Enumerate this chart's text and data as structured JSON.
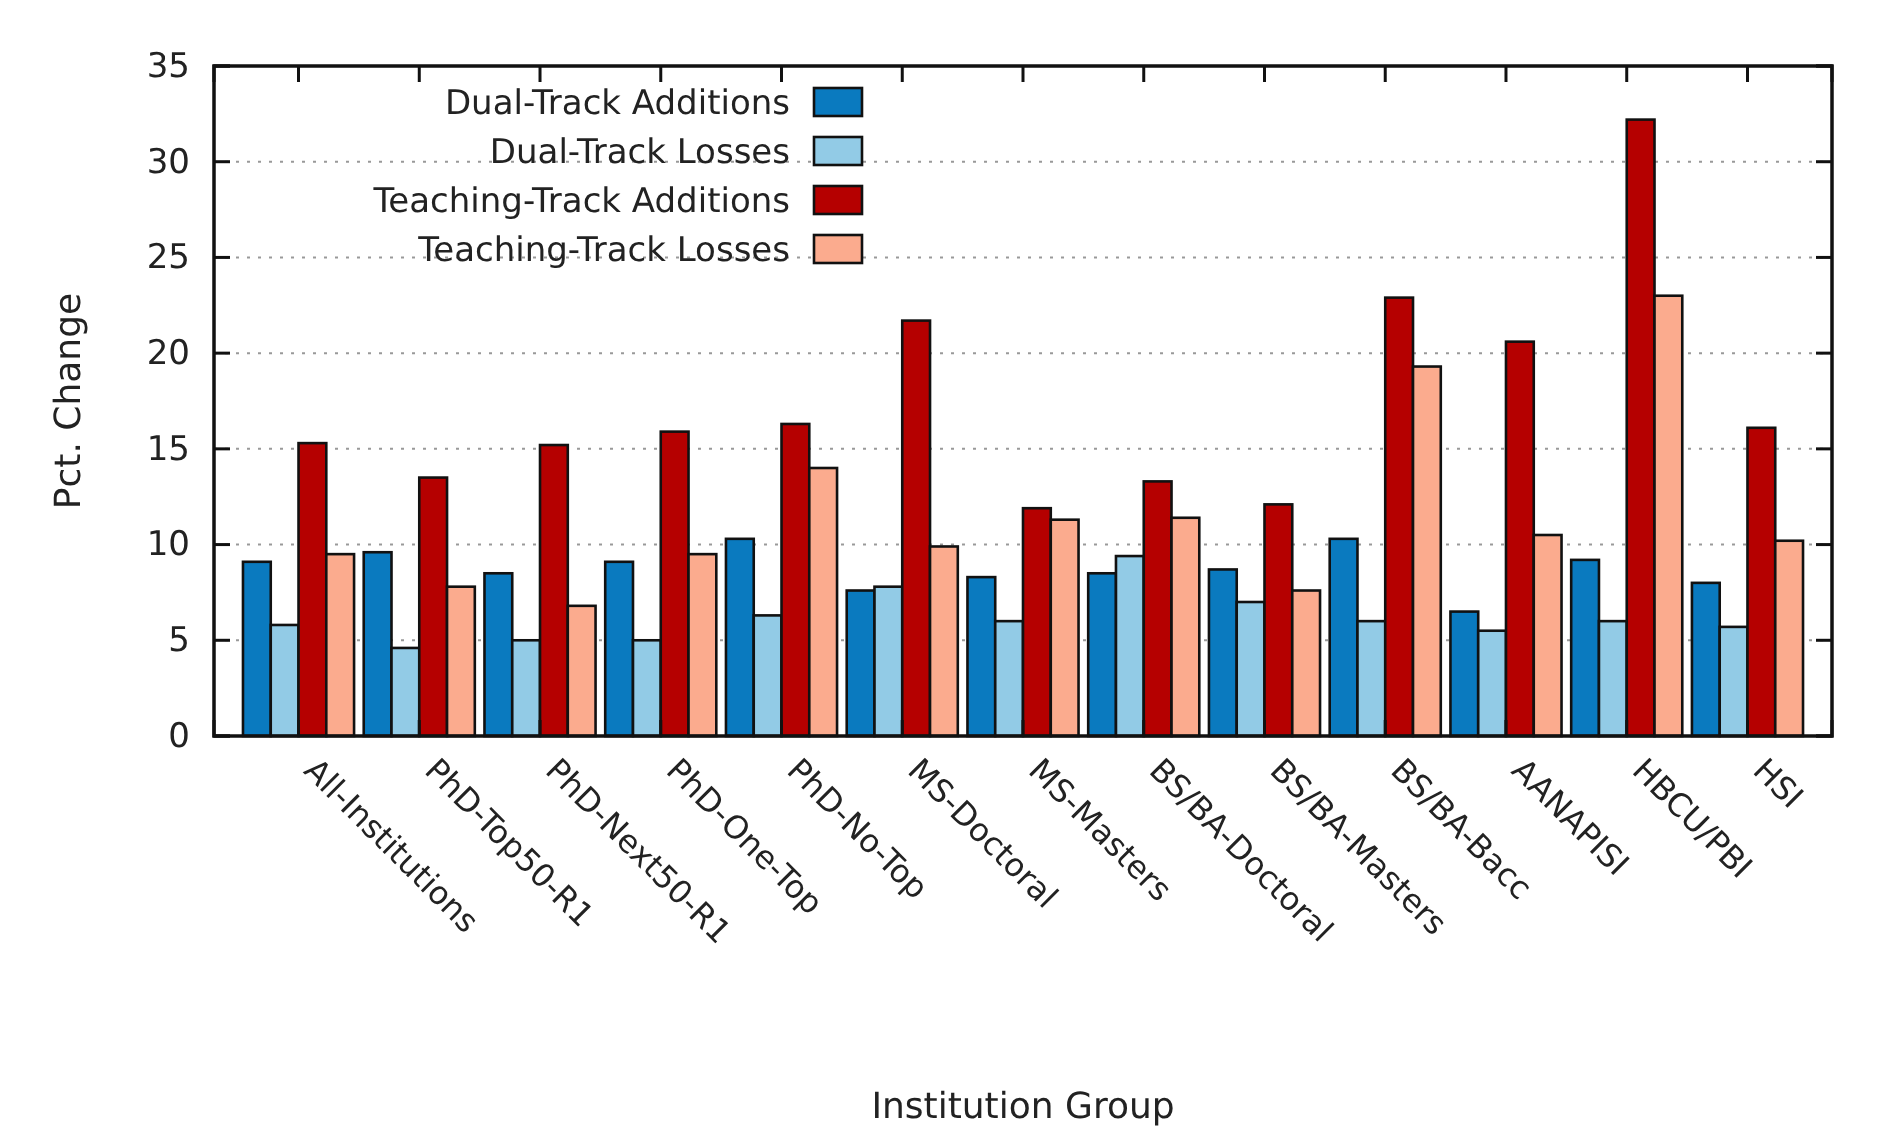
{
  "chart_data": {
    "type": "bar",
    "xlabel": "Institution Group",
    "ylabel": "Pct. Change",
    "categories": [
      "All-Institutions",
      "PhD-Top50-R1",
      "PhD-Next50-R1",
      "PhD-One-Top",
      "PhD-No-Top",
      "MS-Doctoral",
      "MS-Masters",
      "BS/BA-Doctoral",
      "BS/BA-Masters",
      "BS/BA-Bacc",
      "AANAPISI",
      "HBCU/PBI",
      "HSI"
    ],
    "series": [
      {
        "name": "Dual-Track Additions",
        "color": "#0a7abf",
        "values": [
          9.1,
          9.6,
          8.5,
          9.1,
          10.3,
          7.6,
          8.3,
          8.5,
          8.7,
          10.3,
          6.5,
          9.2,
          8.0
        ]
      },
      {
        "name": "Dual-Track Losses",
        "color": "#92cbe6",
        "values": [
          5.8,
          4.6,
          5.0,
          5.0,
          6.3,
          7.8,
          6.0,
          9.4,
          7.0,
          6.0,
          5.5,
          6.0,
          5.7
        ]
      },
      {
        "name": "Teaching-Track Additions",
        "color": "#b50000",
        "values": [
          15.3,
          13.5,
          15.2,
          15.9,
          16.3,
          21.7,
          11.9,
          13.3,
          12.1,
          22.9,
          20.6,
          32.2,
          16.1
        ]
      },
      {
        "name": "Teaching-Track Losses",
        "color": "#fbab8e",
        "values": [
          9.5,
          7.8,
          6.8,
          9.5,
          14.0,
          9.9,
          11.3,
          11.4,
          7.6,
          19.3,
          10.5,
          23.0,
          10.2
        ]
      }
    ],
    "ylim": [
      0,
      35
    ],
    "yticks": [
      0,
      5,
      10,
      15,
      20,
      25,
      30,
      35
    ],
    "grid": "y",
    "legend": "top"
  }
}
